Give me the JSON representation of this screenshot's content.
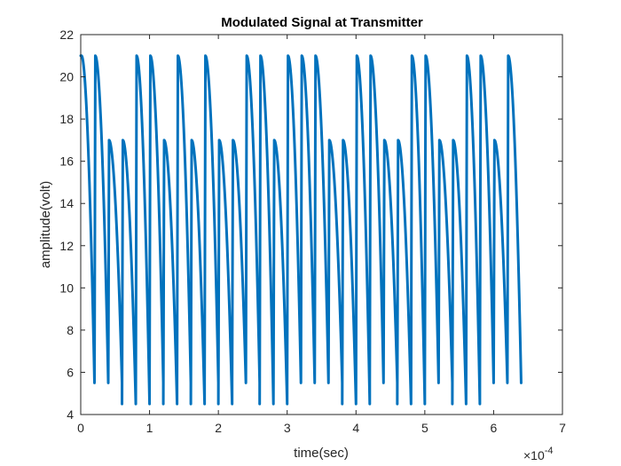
{
  "chart_data": {
    "type": "line",
    "title": "Modulated Signal at Transmitter",
    "xlabel": "time(sec)",
    "ylabel": "amplitude(volt)",
    "x_exponent_base": "×10",
    "x_exponent_power": "-4",
    "xlim": [
      0,
      7
    ],
    "ylim": [
      4,
      22
    ],
    "x_ticks": [
      "0",
      "1",
      "2",
      "3",
      "4",
      "5",
      "6",
      "7"
    ],
    "y_ticks": [
      "4",
      "6",
      "8",
      "10",
      "12",
      "14",
      "16",
      "18",
      "20",
      "22"
    ],
    "grid": false,
    "line_color": "#0072BD",
    "bit_period": 0.2,
    "pulse_peaks": [
      21,
      21,
      17,
      17,
      21,
      21,
      17,
      21,
      17,
      21,
      17,
      17,
      21,
      21,
      17,
      21,
      21,
      21,
      17,
      17,
      21,
      21,
      17,
      17,
      21,
      21,
      17,
      17,
      21,
      21,
      17,
      21
    ],
    "pulse_troughs": [
      5.5,
      5.5,
      5.5,
      4.5,
      4.5,
      5.5,
      4.5,
      5.5,
      4.5,
      5.5,
      4.5,
      5.5,
      5.5,
      4.5,
      4.5,
      5.5,
      5.5,
      5.5,
      5.5,
      4.5,
      4.5,
      5.5,
      5.5,
      4.5,
      4.5,
      5.5,
      5.5,
      4.5,
      4.5,
      5.5,
      5.5,
      5.5
    ],
    "x_end": 6.4
  }
}
